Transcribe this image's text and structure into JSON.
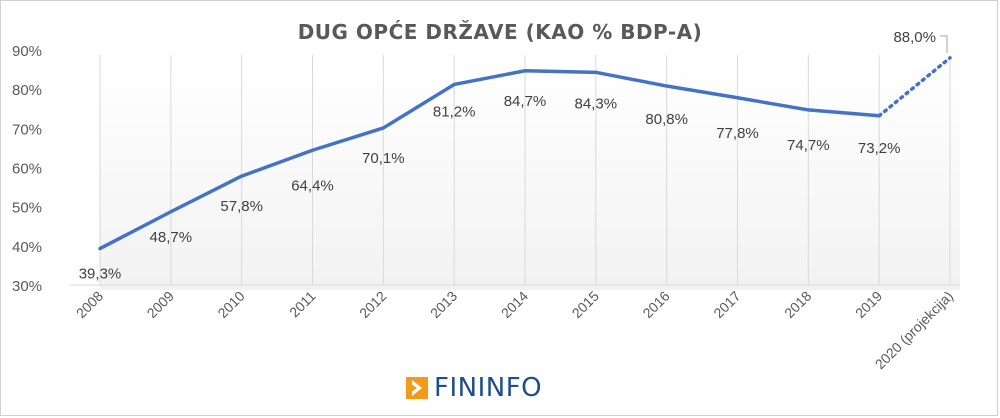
{
  "chart_data": {
    "type": "line",
    "title": "DUG OPĆE DRŽAVE (KAO % BDP-A)",
    "categories": [
      "2008",
      "2009",
      "2010",
      "2011",
      "2012",
      "2013",
      "2014",
      "2015",
      "2016",
      "2017",
      "2018",
      "2019",
      "2020 (projekcija)"
    ],
    "values": [
      39.3,
      48.7,
      57.8,
      64.4,
      70.1,
      81.2,
      84.7,
      84.3,
      80.8,
      77.8,
      74.7,
      73.2,
      88.0
    ],
    "data_labels": [
      "39,3%",
      "48,7%",
      "57,8%",
      "64,4%",
      "70,1%",
      "81,2%",
      "84,7%",
      "84,3%",
      "80,8%",
      "77,8%",
      "74,7%",
      "73,2%",
      "88,0%"
    ],
    "projected_from_index": 11,
    "yticks": [
      "30%",
      "40%",
      "50%",
      "60%",
      "70%",
      "80%",
      "90%"
    ],
    "ylim": [
      30,
      90
    ],
    "series_color": "#4472c4",
    "grid": "vertical",
    "xlabel": "",
    "ylabel": ""
  },
  "branding": {
    "logo_text": "FININFO",
    "logo_color": "#1d4f8c",
    "logo_mark_color": "#f39a1a",
    "logo_mark_icon": "arrow-right-icon"
  }
}
